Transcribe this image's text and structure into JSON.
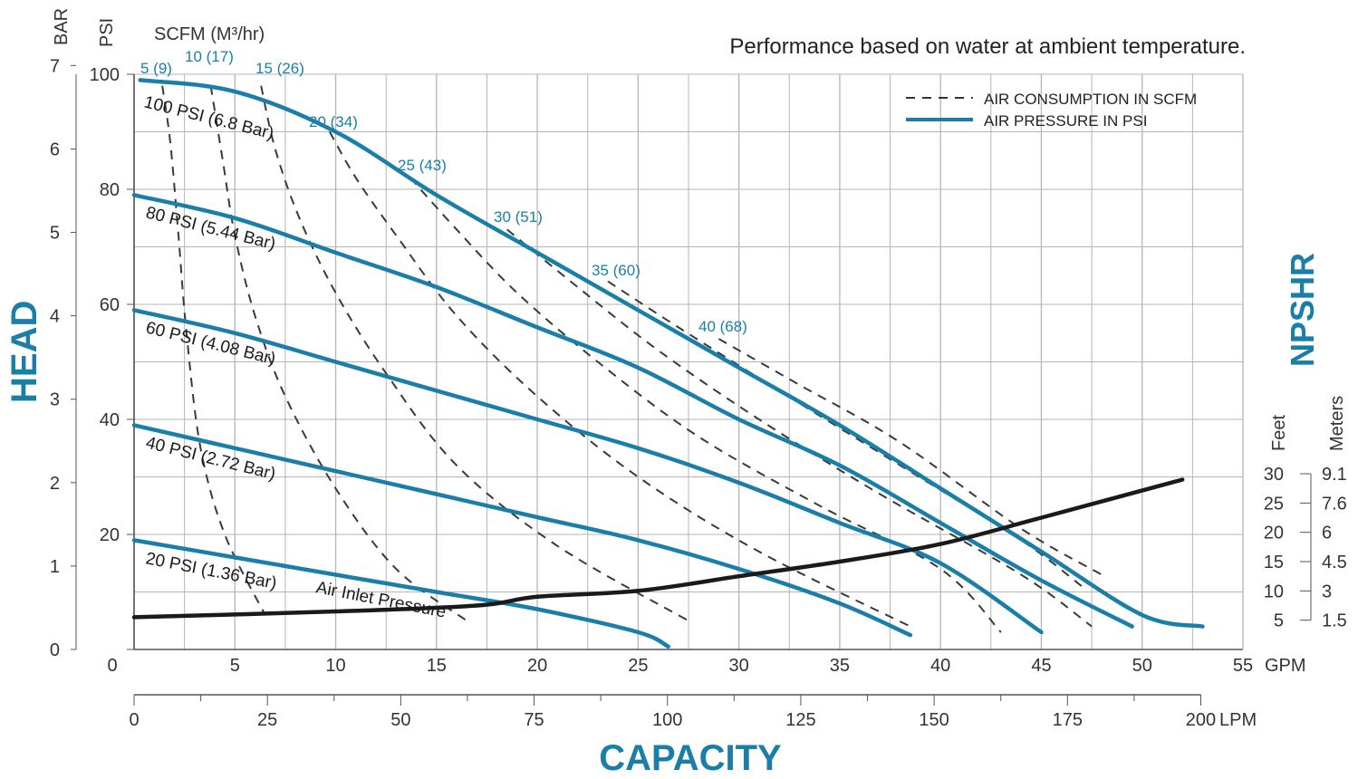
{
  "chart_data": {
    "type": "line",
    "note": "Performance based on water at ambient temperature.",
    "x_axis_gpm": {
      "label": "GPM",
      "ticks": [
        "0",
        "5",
        "10",
        "15",
        "20",
        "25",
        "30",
        "35",
        "40",
        "45",
        "50",
        "55"
      ],
      "range": [
        0,
        55
      ]
    },
    "x_axis_lpm": {
      "label": "LPM",
      "ticks": [
        "0",
        "25",
        "50",
        "75",
        "100",
        "125",
        "150",
        "175",
        "200"
      ],
      "range": [
        0,
        207.9
      ]
    },
    "y_axis_psi": {
      "label": "PSI",
      "ticks": [
        "20",
        "40",
        "60",
        "80",
        "100"
      ],
      "range": [
        0,
        100
      ]
    },
    "y_axis_bar": {
      "label": "BAR",
      "ticks": [
        "0",
        "1",
        "2",
        "3",
        "4",
        "5",
        "6",
        "7"
      ],
      "range": [
        0,
        6.895
      ]
    },
    "xlabel": "CAPACITY",
    "ylabel": "HEAD",
    "npshr": {
      "title": "NPSHR",
      "feet_label": "Feet",
      "meters_label": "Meters",
      "feet_ticks": [
        "5",
        "10",
        "15",
        "20",
        "25",
        "30"
      ],
      "meters_ticks": [
        "1.5",
        "3",
        "4.5",
        "6",
        "7.6",
        "9.1"
      ],
      "points": [
        [
          0,
          5.5
        ],
        [
          10,
          6.5
        ],
        [
          17,
          7.5
        ],
        [
          20,
          9
        ],
        [
          25,
          10
        ],
        [
          30,
          12.5
        ],
        [
          35,
          15
        ],
        [
          40,
          18
        ],
        [
          45,
          22.5
        ],
        [
          52,
          29
        ]
      ]
    },
    "scfm_axis_label": "SCFM (M³/hr)",
    "legend": {
      "position": "top-right",
      "items": [
        {
          "label": "AIR CONSUMPTION IN SCFM",
          "style": "dashed",
          "color": "#333333"
        },
        {
          "label": "AIR PRESSURE IN PSI",
          "style": "solid",
          "color": "#1a7fa8"
        }
      ]
    },
    "pressure_series": [
      {
        "name": "100 PSI (6.8 Bar)",
        "points": [
          [
            0.3,
            99
          ],
          [
            5,
            97
          ],
          [
            10,
            90
          ],
          [
            15,
            79
          ],
          [
            20,
            69
          ],
          [
            25,
            59
          ],
          [
            30,
            49
          ],
          [
            35,
            39
          ],
          [
            40,
            28
          ],
          [
            45,
            17
          ],
          [
            50,
            6
          ],
          [
            53,
            4
          ]
        ]
      },
      {
        "name": "80 PSI (5.44 Bar)",
        "points": [
          [
            0,
            79
          ],
          [
            5,
            75
          ],
          [
            10,
            69
          ],
          [
            15,
            63
          ],
          [
            20,
            56
          ],
          [
            25,
            49
          ],
          [
            30,
            40
          ],
          [
            35,
            32
          ],
          [
            40,
            22
          ],
          [
            45,
            12
          ],
          [
            49.5,
            4
          ]
        ]
      },
      {
        "name": "60 PSI (4.08 Bar)",
        "points": [
          [
            0,
            59
          ],
          [
            5,
            55
          ],
          [
            10,
            50
          ],
          [
            15,
            45
          ],
          [
            20,
            40
          ],
          [
            25,
            35
          ],
          [
            30,
            29
          ],
          [
            35,
            22
          ],
          [
            40,
            15
          ],
          [
            45,
            3
          ]
        ]
      },
      {
        "name": "40 PSI (2.72 Bar)",
        "points": [
          [
            0,
            39
          ],
          [
            5,
            35
          ],
          [
            10,
            31
          ],
          [
            15,
            27
          ],
          [
            20,
            23
          ],
          [
            25,
            19
          ],
          [
            30,
            14
          ],
          [
            35,
            8
          ],
          [
            38.5,
            2.5
          ]
        ]
      },
      {
        "name": "20 PSI (1.36 Bar)",
        "points": [
          [
            0,
            19
          ],
          [
            5,
            16
          ],
          [
            10,
            13
          ],
          [
            15,
            10
          ],
          [
            20,
            7
          ],
          [
            25,
            3
          ],
          [
            26.5,
            0.5
          ]
        ]
      }
    ],
    "scfm_series": [
      {
        "name": "5 (9)",
        "points": [
          [
            1.4,
            98
          ],
          [
            1.8,
            88
          ],
          [
            2.2,
            72
          ],
          [
            2.6,
            55
          ],
          [
            3.3,
            35
          ],
          [
            4.5,
            20
          ],
          [
            6.5,
            6
          ]
        ]
      },
      {
        "name": "10 (17)",
        "points": [
          [
            3.8,
            98
          ],
          [
            4.4,
            85
          ],
          [
            5,
            72
          ],
          [
            6,
            58
          ],
          [
            7.5,
            44
          ],
          [
            10,
            28
          ],
          [
            13,
            14
          ],
          [
            16.5,
            5
          ]
        ]
      },
      {
        "name": "15 (26)",
        "points": [
          [
            6.3,
            98
          ],
          [
            7,
            87
          ],
          [
            8.2,
            75
          ],
          [
            10,
            62
          ],
          [
            12.5,
            48
          ],
          [
            16,
            32
          ],
          [
            21,
            18
          ],
          [
            27.5,
            5
          ]
        ]
      },
      {
        "name": "20 (34)",
        "points": [
          [
            9.7,
            90
          ],
          [
            11,
            82
          ],
          [
            13,
            72
          ],
          [
            16,
            58
          ],
          [
            20,
            44
          ],
          [
            25,
            30
          ],
          [
            31,
            17
          ],
          [
            38.5,
            4
          ]
        ]
      },
      {
        "name": "25 (43)",
        "points": [
          [
            13.7,
            82
          ],
          [
            16,
            73
          ],
          [
            19,
            62
          ],
          [
            23,
            50
          ],
          [
            28,
            37
          ],
          [
            34,
            25
          ],
          [
            40,
            14
          ],
          [
            43,
            3
          ]
        ]
      },
      {
        "name": "30 (51)",
        "points": [
          [
            18.5,
            73
          ],
          [
            22,
            63
          ],
          [
            26,
            52
          ],
          [
            31,
            40
          ],
          [
            37,
            27
          ],
          [
            44,
            13
          ],
          [
            47.5,
            4
          ]
        ]
      },
      {
        "name": "35 (60)",
        "points": [
          [
            23.5,
            64
          ],
          [
            27,
            56
          ],
          [
            32,
            45
          ],
          [
            38,
            32
          ],
          [
            44,
            19
          ],
          [
            47,
            11
          ]
        ]
      },
      {
        "name": "40 (68)",
        "points": [
          [
            29,
            54
          ],
          [
            33,
            46
          ],
          [
            38,
            36
          ],
          [
            44,
            21
          ],
          [
            48,
            13
          ]
        ]
      }
    ],
    "annotation": "Air Inlet Pressure"
  }
}
